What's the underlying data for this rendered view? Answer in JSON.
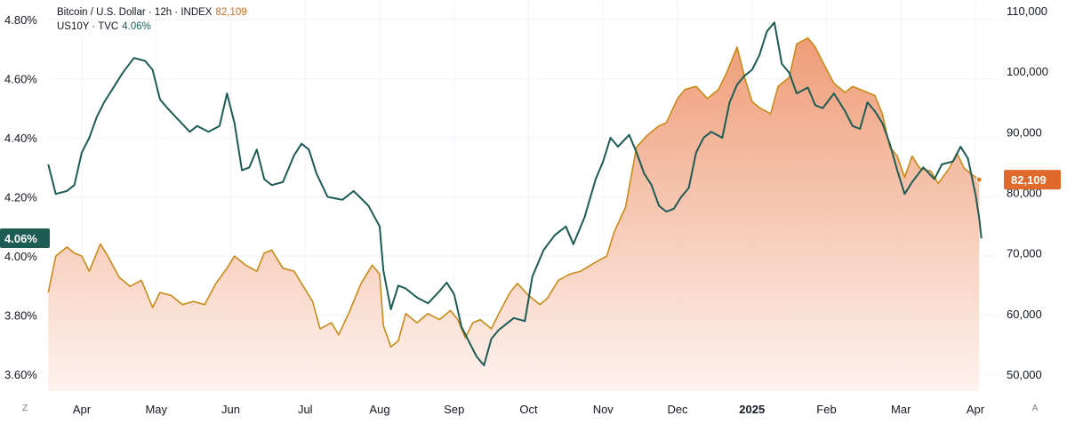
{
  "legend": {
    "btc_label": "Bitcoin / U.S. Dollar · 12h · INDEX",
    "btc_value": "82,109",
    "yield_label": "US10Y · TVC",
    "yield_value": "4.06%"
  },
  "corner": {
    "left": "Z",
    "right": "A"
  },
  "chart_data": {
    "type": "line",
    "x_ticks": [
      {
        "label": "Apr",
        "t": 0.0
      },
      {
        "label": "May",
        "t": 1.0
      },
      {
        "label": "Jun",
        "t": 2.0
      },
      {
        "label": "Jul",
        "t": 3.0
      },
      {
        "label": "Aug",
        "t": 4.0
      },
      {
        "label": "Sep",
        "t": 5.0
      },
      {
        "label": "Oct",
        "t": 6.0
      },
      {
        "label": "Nov",
        "t": 7.0
      },
      {
        "label": "Dec",
        "t": 8.0
      },
      {
        "label": "2025",
        "t": 9.0,
        "bold": true
      },
      {
        "label": "Feb",
        "t": 10.0
      },
      {
        "label": "Mar",
        "t": 11.0
      },
      {
        "label": "Apr",
        "t": 12.0
      }
    ],
    "x_range": [
      -0.45,
      12.1
    ],
    "left_axis": {
      "series": "US10Y",
      "ylim": [
        3.55,
        4.85
      ],
      "ticks": [
        3.6,
        3.8,
        4.0,
        4.2,
        4.4,
        4.6,
        4.8
      ],
      "tick_labels": [
        "3.60%",
        "3.80%",
        "4.00%",
        "4.20%",
        "4.40%",
        "4.60%",
        "4.80%"
      ],
      "last_value_badge": "4.06%"
    },
    "right_axis": {
      "series": "BTCUSD",
      "ylim": [
        48500,
        111000
      ],
      "ticks": [
        50000,
        60000,
        70000,
        80000,
        90000,
        100000,
        110000
      ],
      "tick_labels": [
        "50,000",
        "60,000",
        "70,000",
        "80,000",
        "90,000",
        "100,000",
        "110,000"
      ],
      "last_value_badge": "82,109"
    },
    "grid": true,
    "legend_placement": "top-left",
    "series": [
      {
        "name": "Bitcoin / U.S. Dollar",
        "axis": "right",
        "color": "#c98a16",
        "fill_top": "#ee9770",
        "fill_bottom": "#fdf1ec",
        "points": [
          [
            -0.45,
            63500
          ],
          [
            -0.35,
            69500
          ],
          [
            -0.2,
            71000
          ],
          [
            -0.1,
            70000
          ],
          [
            0.0,
            69500
          ],
          [
            0.1,
            67000
          ],
          [
            0.25,
            71500
          ],
          [
            0.35,
            69500
          ],
          [
            0.5,
            66000
          ],
          [
            0.65,
            64500
          ],
          [
            0.8,
            65500
          ],
          [
            0.95,
            61000
          ],
          [
            1.05,
            63500
          ],
          [
            1.2,
            63000
          ],
          [
            1.35,
            61500
          ],
          [
            1.5,
            62000
          ],
          [
            1.65,
            61500
          ],
          [
            1.8,
            65000
          ],
          [
            1.95,
            67500
          ],
          [
            2.05,
            69500
          ],
          [
            2.2,
            68000
          ],
          [
            2.35,
            67000
          ],
          [
            2.45,
            70000
          ],
          [
            2.55,
            70500
          ],
          [
            2.7,
            67500
          ],
          [
            2.85,
            67000
          ],
          [
            2.95,
            65000
          ],
          [
            3.1,
            62000
          ],
          [
            3.2,
            57500
          ],
          [
            3.35,
            58500
          ],
          [
            3.45,
            56500
          ],
          [
            3.6,
            60500
          ],
          [
            3.75,
            65000
          ],
          [
            3.9,
            68000
          ],
          [
            4.0,
            66500
          ],
          [
            4.05,
            58000
          ],
          [
            4.15,
            54500
          ],
          [
            4.25,
            55500
          ],
          [
            4.35,
            60000
          ],
          [
            4.5,
            58500
          ],
          [
            4.65,
            60000
          ],
          [
            4.8,
            59000
          ],
          [
            4.95,
            60500
          ],
          [
            5.05,
            59000
          ],
          [
            5.15,
            56000
          ],
          [
            5.25,
            58500
          ],
          [
            5.35,
            59000
          ],
          [
            5.5,
            57500
          ],
          [
            5.6,
            60000
          ],
          [
            5.75,
            63500
          ],
          [
            5.85,
            65000
          ],
          [
            6.0,
            63000
          ],
          [
            6.15,
            61500
          ],
          [
            6.25,
            62500
          ],
          [
            6.4,
            65500
          ],
          [
            6.55,
            66500
          ],
          [
            6.7,
            67000
          ],
          [
            6.9,
            68500
          ],
          [
            7.05,
            69500
          ],
          [
            7.15,
            73500
          ],
          [
            7.3,
            77500
          ],
          [
            7.45,
            87500
          ],
          [
            7.6,
            89500
          ],
          [
            7.75,
            91000
          ],
          [
            7.85,
            91500
          ],
          [
            8.0,
            95500
          ],
          [
            8.1,
            97000
          ],
          [
            8.25,
            97500
          ],
          [
            8.4,
            95500
          ],
          [
            8.55,
            97000
          ],
          [
            8.65,
            99500
          ],
          [
            8.8,
            104000
          ],
          [
            8.9,
            99000
          ],
          [
            9.0,
            95000
          ],
          [
            9.1,
            94000
          ],
          [
            9.25,
            93000
          ],
          [
            9.35,
            97500
          ],
          [
            9.5,
            99000
          ],
          [
            9.6,
            104500
          ],
          [
            9.75,
            105500
          ],
          [
            9.85,
            104000
          ],
          [
            9.95,
            101500
          ],
          [
            10.1,
            98000
          ],
          [
            10.25,
            96500
          ],
          [
            10.35,
            97500
          ],
          [
            10.45,
            97000
          ],
          [
            10.55,
            96500
          ],
          [
            10.65,
            96000
          ],
          [
            10.75,
            93000
          ],
          [
            10.85,
            87500
          ],
          [
            10.95,
            86000
          ],
          [
            11.05,
            82500
          ],
          [
            11.15,
            86000
          ],
          [
            11.25,
            84000
          ],
          [
            11.4,
            83500
          ],
          [
            11.5,
            81500
          ],
          [
            11.65,
            84000
          ],
          [
            11.75,
            86500
          ],
          [
            11.85,
            84000
          ],
          [
            11.95,
            83000
          ],
          [
            12.05,
            82109
          ]
        ]
      },
      {
        "name": "US10Y",
        "axis": "left",
        "color": "#1c5c55",
        "points": [
          [
            -0.45,
            4.31
          ],
          [
            -0.35,
            4.21
          ],
          [
            -0.2,
            4.22
          ],
          [
            -0.1,
            4.24
          ],
          [
            0.0,
            4.35
          ],
          [
            0.1,
            4.4
          ],
          [
            0.2,
            4.47
          ],
          [
            0.3,
            4.52
          ],
          [
            0.4,
            4.56
          ],
          [
            0.55,
            4.62
          ],
          [
            0.7,
            4.67
          ],
          [
            0.85,
            4.66
          ],
          [
            0.95,
            4.63
          ],
          [
            1.05,
            4.53
          ],
          [
            1.15,
            4.5
          ],
          [
            1.3,
            4.46
          ],
          [
            1.45,
            4.42
          ],
          [
            1.55,
            4.44
          ],
          [
            1.7,
            4.42
          ],
          [
            1.85,
            4.44
          ],
          [
            1.95,
            4.55
          ],
          [
            2.05,
            4.45
          ],
          [
            2.15,
            4.29
          ],
          [
            2.25,
            4.3
          ],
          [
            2.35,
            4.36
          ],
          [
            2.45,
            4.26
          ],
          [
            2.55,
            4.24
          ],
          [
            2.7,
            4.25
          ],
          [
            2.85,
            4.34
          ],
          [
            2.95,
            4.38
          ],
          [
            3.05,
            4.36
          ],
          [
            3.15,
            4.28
          ],
          [
            3.3,
            4.2
          ],
          [
            3.5,
            4.19
          ],
          [
            3.65,
            4.22
          ],
          [
            3.85,
            4.17
          ],
          [
            4.0,
            4.1
          ],
          [
            4.05,
            3.95
          ],
          [
            4.15,
            3.82
          ],
          [
            4.25,
            3.9
          ],
          [
            4.35,
            3.89
          ],
          [
            4.5,
            3.86
          ],
          [
            4.65,
            3.84
          ],
          [
            4.8,
            3.88
          ],
          [
            4.9,
            3.91
          ],
          [
            5.0,
            3.87
          ],
          [
            5.1,
            3.76
          ],
          [
            5.2,
            3.71
          ],
          [
            5.3,
            3.66
          ],
          [
            5.4,
            3.63
          ],
          [
            5.5,
            3.72
          ],
          [
            5.6,
            3.75
          ],
          [
            5.8,
            3.79
          ],
          [
            5.95,
            3.78
          ],
          [
            6.05,
            3.93
          ],
          [
            6.2,
            4.02
          ],
          [
            6.35,
            4.07
          ],
          [
            6.5,
            4.1
          ],
          [
            6.6,
            4.04
          ],
          [
            6.75,
            4.13
          ],
          [
            6.9,
            4.26
          ],
          [
            7.0,
            4.32
          ],
          [
            7.1,
            4.4
          ],
          [
            7.2,
            4.37
          ],
          [
            7.35,
            4.41
          ],
          [
            7.45,
            4.35
          ],
          [
            7.55,
            4.28
          ],
          [
            7.65,
            4.24
          ],
          [
            7.75,
            4.17
          ],
          [
            7.85,
            4.15
          ],
          [
            7.95,
            4.16
          ],
          [
            8.05,
            4.2
          ],
          [
            8.15,
            4.23
          ],
          [
            8.25,
            4.35
          ],
          [
            8.35,
            4.4
          ],
          [
            8.45,
            4.42
          ],
          [
            8.6,
            4.4
          ],
          [
            8.7,
            4.52
          ],
          [
            8.8,
            4.58
          ],
          [
            8.9,
            4.61
          ],
          [
            9.0,
            4.63
          ],
          [
            9.1,
            4.68
          ],
          [
            9.2,
            4.76
          ],
          [
            9.3,
            4.79
          ],
          [
            9.4,
            4.65
          ],
          [
            9.5,
            4.62
          ],
          [
            9.6,
            4.55
          ],
          [
            9.75,
            4.57
          ],
          [
            9.85,
            4.51
          ],
          [
            9.95,
            4.5
          ],
          [
            10.1,
            4.55
          ],
          [
            10.25,
            4.49
          ],
          [
            10.35,
            4.44
          ],
          [
            10.45,
            4.43
          ],
          [
            10.55,
            4.52
          ],
          [
            10.65,
            4.49
          ],
          [
            10.75,
            4.45
          ],
          [
            10.85,
            4.38
          ],
          [
            10.95,
            4.29
          ],
          [
            11.05,
            4.21
          ],
          [
            11.15,
            4.25
          ],
          [
            11.3,
            4.3
          ],
          [
            11.45,
            4.26
          ],
          [
            11.55,
            4.31
          ],
          [
            11.7,
            4.32
          ],
          [
            11.8,
            4.37
          ],
          [
            11.9,
            4.33
          ],
          [
            12.0,
            4.21
          ],
          [
            12.05,
            4.13
          ],
          [
            12.08,
            4.06
          ]
        ]
      }
    ]
  }
}
